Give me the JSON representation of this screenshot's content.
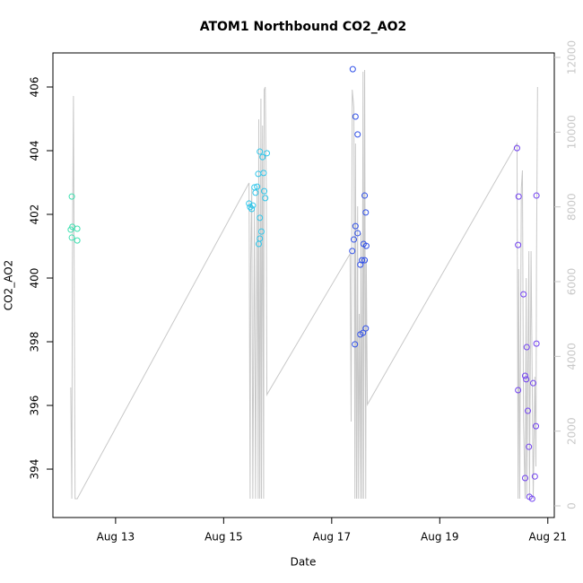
{
  "chart_data": {
    "type": "scatter",
    "title": "ATOM1 Northbound CO2_AO2",
    "x_label": "Date",
    "y_label": "CO2_AO2",
    "xlim": [
      11.84,
      21.12
    ],
    "xticks": [
      {
        "value": 13,
        "label": "Aug 13"
      },
      {
        "value": 15,
        "label": "Aug 15"
      },
      {
        "value": 17,
        "label": "Aug 17"
      },
      {
        "value": 19,
        "label": "Aug 19"
      },
      {
        "value": 21,
        "label": "Aug 21"
      }
    ],
    "ylim": [
      392.48,
      407.07
    ],
    "yticks": [
      394,
      396,
      398,
      400,
      402,
      404,
      406
    ],
    "y2lim": [
      -312,
      12120
    ],
    "y2ticks": [
      0,
      2000,
      4000,
      6000,
      8000,
      10000,
      12000
    ],
    "series": [
      {
        "color": "#3ee0b0",
        "x": [
          12.19,
          12.17,
          12.2,
          12.29,
          12.19,
          12.29
        ],
        "values": [
          402.56,
          401.52,
          401.61,
          401.55,
          401.27,
          401.18
        ]
      },
      {
        "color": "#30c6ea",
        "x": [
          15.47,
          15.54,
          15.49,
          15.52,
          15.57,
          15.62,
          15.59,
          15.64,
          15.67,
          15.72,
          15.74,
          15.75,
          15.77,
          15.8,
          15.65,
          15.67,
          15.7,
          15.67
        ],
        "values": [
          402.34,
          402.28,
          402.23,
          402.17,
          402.85,
          402.87,
          402.68,
          403.27,
          403.97,
          403.8,
          403.3,
          402.73,
          402.51,
          403.92,
          401.07,
          401.24,
          401.46,
          401.89
        ]
      },
      {
        "color": "#3050e8",
        "x": [
          17.39,
          17.44,
          17.48,
          17.61,
          17.63,
          17.44,
          17.41,
          17.48,
          17.38,
          17.53,
          17.56,
          17.59,
          17.64,
          17.61,
          17.43,
          17.53,
          17.58,
          17.63
        ],
        "values": [
          406.56,
          405.07,
          404.51,
          402.59,
          402.06,
          401.63,
          401.21,
          401.41,
          400.85,
          400.42,
          400.56,
          401.07,
          401.01,
          400.56,
          397.92,
          398.23,
          398.28,
          398.42
        ]
      },
      {
        "color": "#7040f0",
        "x": [
          20.43,
          20.46,
          20.45,
          20.55,
          20.58,
          20.6,
          20.61,
          20.63,
          20.65,
          20.58,
          20.66,
          20.71,
          20.73,
          20.78,
          20.79,
          20.79,
          20.76,
          20.45
        ],
        "values": [
          404.08,
          402.56,
          401.04,
          399.49,
          396.93,
          396.82,
          397.83,
          395.83,
          394.7,
          393.72,
          393.13,
          393.07,
          396.7,
          395.35,
          397.94,
          402.59,
          393.77,
          396.48
        ]
      },
      {
        "type": "line",
        "axis": "y2",
        "color": "#c8c8c8",
        "x": [
          12.17,
          12.19,
          12.2,
          12.22,
          12.24,
          12.25,
          12.29,
          15.47,
          15.49,
          15.5,
          15.52,
          15.54,
          15.57,
          15.59,
          15.62,
          15.64,
          15.65,
          15.67,
          15.69,
          15.7,
          15.72,
          15.74,
          15.75,
          15.77,
          15.79,
          15.8,
          17.34,
          17.36,
          17.38,
          17.41,
          17.43,
          17.44,
          17.46,
          17.48,
          17.49,
          17.51,
          17.53,
          17.54,
          17.56,
          17.58,
          17.59,
          17.61,
          17.63,
          17.64,
          17.66,
          20.43,
          20.45,
          20.46,
          20.48,
          20.51,
          20.53,
          20.55,
          20.58,
          20.6,
          20.61,
          20.65,
          20.66,
          20.69,
          20.73,
          20.76,
          20.78,
          20.79,
          20.81
        ],
        "values": [
          3168,
          192,
          6336,
          10968,
          3936,
          192,
          192,
          8640,
          192,
          6456,
          8496,
          192,
          8016,
          192,
          8496,
          192,
          10344,
          192,
          10896,
          192,
          10176,
          192,
          11136,
          11208,
          8376,
          2976,
          6744,
          2256,
          11136,
          10656,
          192,
          9696,
          192,
          8016,
          192,
          5136,
          192,
          7296,
          192,
          11616,
          192,
          11664,
          192,
          6576,
          2712,
          9696,
          192,
          6336,
          192,
          8496,
          8976,
          2256,
          192,
          6096,
          192,
          6816,
          192,
          6816,
          192,
          3456,
          1056,
          6336,
          11208
        ]
      }
    ]
  }
}
